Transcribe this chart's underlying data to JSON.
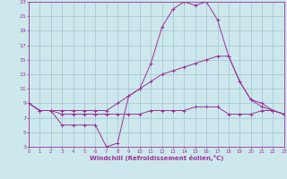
{
  "xlabel": "Windchill (Refroidissement éolien,°C)",
  "background_color": "#cce8ec",
  "grid_color": "#99bbcc",
  "line_color": "#993399",
  "xmin": 0,
  "xmax": 23,
  "ymin": 3,
  "ymax": 23,
  "yticks": [
    3,
    5,
    7,
    9,
    11,
    13,
    15,
    17,
    19,
    21,
    23
  ],
  "xticks": [
    0,
    1,
    2,
    3,
    4,
    5,
    6,
    7,
    8,
    9,
    10,
    11,
    12,
    13,
    14,
    15,
    16,
    17,
    18,
    19,
    20,
    21,
    22,
    23
  ],
  "line1_x": [
    0,
    1,
    2,
    3,
    4,
    5,
    6,
    7,
    8,
    9,
    10,
    11,
    12,
    13,
    14,
    15,
    16,
    17,
    18,
    19,
    20,
    21,
    22,
    23
  ],
  "line1_y": [
    9,
    8,
    8,
    6,
    6,
    6,
    6,
    3,
    3.5,
    10,
    11,
    14.5,
    19.5,
    22,
    23,
    22.5,
    23,
    20.5,
    15.5,
    12,
    9.5,
    9,
    8,
    7.5
  ],
  "line2_x": [
    0,
    1,
    2,
    3,
    4,
    5,
    6,
    7,
    8,
    9,
    10,
    11,
    12,
    13,
    14,
    15,
    16,
    17,
    18,
    19,
    20,
    21,
    22,
    23
  ],
  "line2_y": [
    9,
    8,
    8,
    8,
    8,
    8,
    8,
    8,
    9,
    10,
    11,
    12,
    13,
    13.5,
    14,
    14.5,
    15,
    15.5,
    15.5,
    12,
    9.5,
    8.5,
    8,
    7.5
  ],
  "line3_x": [
    0,
    1,
    2,
    3,
    4,
    5,
    6,
    7,
    8,
    9,
    10,
    11,
    12,
    13,
    14,
    15,
    16,
    17,
    18,
    19,
    20,
    21,
    22,
    23
  ],
  "line3_y": [
    9,
    8,
    8,
    7.5,
    7.5,
    7.5,
    7.5,
    7.5,
    7.5,
    7.5,
    7.5,
    8,
    8,
    8,
    8,
    8.5,
    8.5,
    8.5,
    7.5,
    7.5,
    7.5,
    8,
    8,
    7.5
  ]
}
